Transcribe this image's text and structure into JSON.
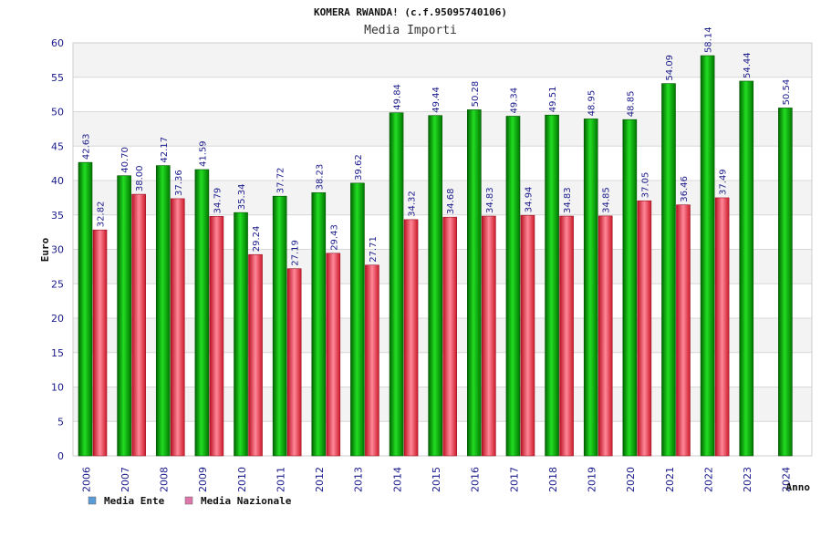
{
  "chart_data": {
    "type": "bar",
    "title": "KOMERA RWANDA! (c.f.95095740106)",
    "subtitle": "Media Importi",
    "xlabel": "Anno",
    "ylabel": "Euro",
    "ylim": [
      0,
      60
    ],
    "yticks": [
      0,
      5,
      10,
      15,
      20,
      25,
      30,
      35,
      40,
      45,
      50,
      55,
      60
    ],
    "grid": true,
    "legend_position": "bottom-left",
    "categories": [
      "2006",
      "2007",
      "2008",
      "2009",
      "2010",
      "2011",
      "2012",
      "2013",
      "2014",
      "2015",
      "2016",
      "2017",
      "2018",
      "2019",
      "2020",
      "2021",
      "2022",
      "2023",
      "2024"
    ],
    "series": [
      {
        "name": "Media Ente",
        "color": "#00aa00",
        "legend_color": "#5b9bd5",
        "values": [
          42.63,
          40.7,
          42.17,
          41.59,
          35.34,
          37.72,
          38.23,
          39.62,
          49.84,
          49.44,
          50.28,
          49.34,
          49.51,
          48.95,
          48.85,
          54.09,
          58.14,
          54.44,
          50.54
        ],
        "labels": [
          "42.63",
          "40.70",
          "42.17",
          "41.59",
          "35.34",
          "37.72",
          "38.23",
          "39.62",
          "49.84",
          "49.44",
          "50.28",
          "49.34",
          "49.51",
          "48.95",
          "48.85",
          "54.09",
          "58.14",
          "54.44",
          "50.54"
        ]
      },
      {
        "name": "Media Nazionale",
        "color": "#dd2233",
        "legend_color": "#dd77aa",
        "values": [
          32.82,
          38.0,
          37.36,
          34.79,
          29.24,
          27.19,
          29.43,
          27.71,
          34.32,
          34.68,
          34.83,
          34.94,
          34.83,
          34.85,
          37.05,
          36.46,
          37.49,
          null,
          null
        ],
        "labels": [
          "32.82",
          "38.00",
          "37.36",
          "34.79",
          "29.24",
          "27.19",
          "29.43",
          "27.71",
          "34.32",
          "34.68",
          "34.83",
          "34.94",
          "34.83",
          "34.85",
          "37.05",
          "36.46",
          "37.49",
          null,
          null
        ]
      }
    ]
  }
}
